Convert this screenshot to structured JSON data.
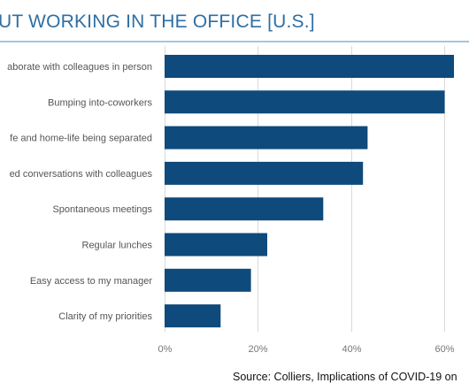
{
  "header": {
    "title": "UT WORKING IN THE OFFICE [U.S.]"
  },
  "footer": {
    "source": "Source: Colliers, Implications of COVID-19 on"
  },
  "colors": {
    "bar": "#0E4A7B",
    "title": "#2E6FA3",
    "rule": "#4A8BC2",
    "grid": "#D9D9D9"
  },
  "chart_data": {
    "type": "bar",
    "orientation": "horizontal",
    "title": "UT WORKING IN THE OFFICE [U.S.]",
    "categories": [
      "aborate with colleagues in person",
      "Bumping into-coworkers",
      "fe and home-life being separated",
      "ed conversations with colleagues",
      "Spontaneous meetings",
      "Regular lunches",
      "Easy access to my manager",
      "Clarity of my priorities"
    ],
    "values": [
      62,
      60,
      43.5,
      42.5,
      34,
      22,
      18.5,
      12
    ],
    "value_unit": "%",
    "xlim": [
      0,
      62
    ],
    "x_ticks": [
      0,
      20,
      40,
      60
    ],
    "x_tick_labels": [
      "0%",
      "20%",
      "40%",
      "60%"
    ],
    "xlabel": "",
    "ylabel": "",
    "grid": true,
    "legend": "none"
  }
}
